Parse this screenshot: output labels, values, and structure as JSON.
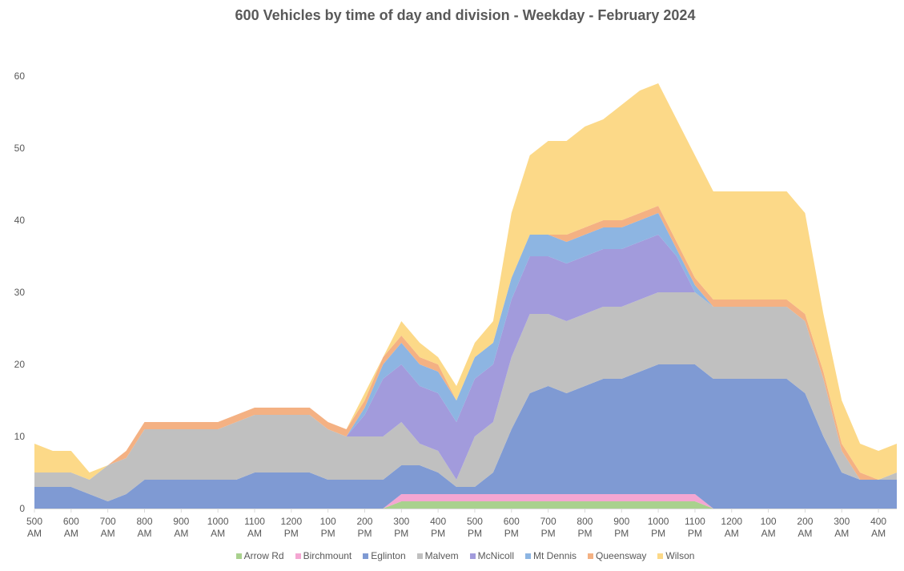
{
  "chart_data": {
    "type": "area",
    "stacked": true,
    "title": "600 Vehicles by time of day and division  - Weekday - February 2024",
    "xlabel": "",
    "ylabel": "",
    "ylim": [
      0,
      60
    ],
    "yticks": [
      0,
      10,
      20,
      30,
      40,
      50,
      60
    ],
    "grid": false,
    "legend_position": "bottom",
    "x_tick_labels": [
      [
        "500",
        "AM"
      ],
      [
        "600",
        "AM"
      ],
      [
        "700",
        "AM"
      ],
      [
        "800",
        "AM"
      ],
      [
        "900",
        "AM"
      ],
      [
        "1000",
        "AM"
      ],
      [
        "1100",
        "AM"
      ],
      [
        "1200",
        "PM"
      ],
      [
        "100",
        "PM"
      ],
      [
        "200",
        "PM"
      ],
      [
        "300",
        "PM"
      ],
      [
        "400",
        "PM"
      ],
      [
        "500",
        "PM"
      ],
      [
        "600",
        "PM"
      ],
      [
        "700",
        "PM"
      ],
      [
        "800",
        "PM"
      ],
      [
        "900",
        "PM"
      ],
      [
        "1000",
        "PM"
      ],
      [
        "1100",
        "PM"
      ],
      [
        "1200",
        "AM"
      ],
      [
        "100",
        "AM"
      ],
      [
        "200",
        "AM"
      ],
      [
        "300",
        "AM"
      ],
      [
        "400",
        "AM"
      ]
    ],
    "x": [
      "500 AM",
      "530 AM",
      "600 AM",
      "630 AM",
      "700 AM",
      "730 AM",
      "800 AM",
      "830 AM",
      "900 AM",
      "930 AM",
      "1000 AM",
      "1030 AM",
      "1100 AM",
      "1130 AM",
      "1200 PM",
      "1230 PM",
      "100 PM",
      "130 PM",
      "200 PM",
      "230 PM",
      "300 PM",
      "330 PM",
      "400 PM",
      "430 PM",
      "500 PM",
      "530 PM",
      "600 PM",
      "630 PM",
      "700 PM",
      "730 PM",
      "800 PM",
      "830 PM",
      "900 PM",
      "930 PM",
      "1000 PM",
      "1030 PM",
      "1100 PM",
      "1130 PM",
      "1200 AM",
      "1230 AM",
      "100 AM",
      "130 AM",
      "200 AM",
      "230 AM",
      "300 AM",
      "330 AM",
      "400 AM",
      "430 AM"
    ],
    "series": [
      {
        "name": "Arrow Rd",
        "color": "#a9d18e",
        "values": [
          0,
          0,
          0,
          0,
          0,
          0,
          0,
          0,
          0,
          0,
          0,
          0,
          0,
          0,
          0,
          0,
          0,
          0,
          0,
          0,
          1,
          1,
          1,
          1,
          1,
          1,
          1,
          1,
          1,
          1,
          1,
          1,
          1,
          1,
          1,
          1,
          1,
          0,
          0,
          0,
          0,
          0,
          0,
          0,
          0,
          0,
          0,
          0
        ]
      },
      {
        "name": "Birchmount",
        "color": "#f4a6d2",
        "values": [
          0,
          0,
          0,
          0,
          0,
          0,
          0,
          0,
          0,
          0,
          0,
          0,
          0,
          0,
          0,
          0,
          0,
          0,
          0,
          0,
          1,
          1,
          1,
          1,
          1,
          1,
          1,
          1,
          1,
          1,
          1,
          1,
          1,
          1,
          1,
          1,
          1,
          0,
          0,
          0,
          0,
          0,
          0,
          0,
          0,
          0,
          0,
          0
        ]
      },
      {
        "name": "Eglinton",
        "color": "#7f9ad3",
        "values": [
          3,
          3,
          3,
          2,
          1,
          2,
          4,
          4,
          4,
          4,
          4,
          4,
          5,
          5,
          5,
          5,
          4,
          4,
          4,
          4,
          4,
          4,
          3,
          1,
          1,
          3,
          9,
          14,
          15,
          14,
          15,
          16,
          16,
          17,
          18,
          18,
          18,
          18,
          18,
          18,
          18,
          18,
          16,
          10,
          5,
          4,
          4,
          4
        ]
      },
      {
        "name": "Malvern",
        "color": "#c0c0c0",
        "values": [
          2,
          2,
          2,
          2,
          5,
          5,
          7,
          7,
          7,
          7,
          7,
          8,
          8,
          8,
          8,
          8,
          7,
          6,
          6,
          6,
          6,
          3,
          3,
          1,
          7,
          7,
          10,
          11,
          10,
          10,
          10,
          10,
          10,
          10,
          10,
          10,
          10,
          10,
          10,
          10,
          10,
          10,
          10,
          8,
          3,
          0,
          0,
          1
        ]
      },
      {
        "name": "McNicoll",
        "color": "#a29bdc",
        "values": [
          0,
          0,
          0,
          0,
          0,
          0,
          0,
          0,
          0,
          0,
          0,
          0,
          0,
          0,
          0,
          0,
          0,
          0,
          3,
          8,
          8,
          8,
          8,
          8,
          8,
          8,
          8,
          8,
          8,
          8,
          8,
          8,
          8,
          8,
          8,
          5,
          0,
          0,
          0,
          0,
          0,
          0,
          0,
          0,
          0,
          0,
          0,
          0
        ]
      },
      {
        "name": "Mt Dennis",
        "color": "#8db5e2",
        "values": [
          0,
          0,
          0,
          0,
          0,
          0,
          0,
          0,
          0,
          0,
          0,
          0,
          0,
          0,
          0,
          0,
          0,
          0,
          1,
          2,
          3,
          3,
          3,
          3,
          3,
          3,
          3,
          3,
          3,
          3,
          3,
          3,
          3,
          3,
          3,
          1,
          1,
          0,
          0,
          0,
          0,
          0,
          0,
          0,
          0,
          0,
          0,
          0
        ]
      },
      {
        "name": "Queensway",
        "color": "#f4b183",
        "values": [
          0,
          0,
          0,
          0,
          0,
          1,
          1,
          1,
          1,
          1,
          1,
          1,
          1,
          1,
          1,
          1,
          1,
          1,
          1,
          1,
          1,
          1,
          1,
          0,
          0,
          0,
          0,
          0,
          0,
          1,
          1,
          1,
          1,
          1,
          1,
          1,
          1,
          1,
          1,
          1,
          1,
          1,
          1,
          1,
          1,
          1,
          0,
          0
        ]
      },
      {
        "name": "Wilson",
        "color": "#fcd988",
        "values": [
          4,
          3,
          3,
          1,
          0,
          0,
          0,
          0,
          0,
          0,
          0,
          0,
          0,
          0,
          0,
          0,
          0,
          0,
          1,
          0,
          2,
          2,
          1,
          2,
          2,
          3,
          9,
          11,
          13,
          13,
          14,
          14,
          16,
          17,
          17,
          17,
          17,
          15,
          15,
          15,
          15,
          15,
          14,
          8,
          6,
          4,
          4,
          4
        ]
      }
    ]
  }
}
